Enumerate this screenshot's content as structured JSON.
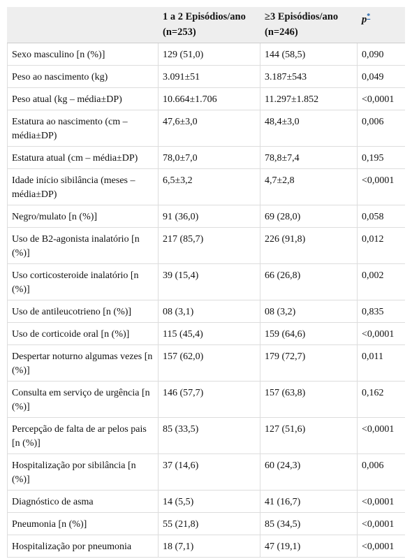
{
  "table": {
    "header": [
      [],
      [
        "1 a 2 Episódios/ano",
        "(n=253)"
      ],
      [
        "≥3 Episódios/ano",
        "(n=246)"
      ],
      {
        "text": "p",
        "note": "*"
      }
    ],
    "rows": [
      [
        "Sexo masculino [n (%)]",
        "129 (51,0)",
        "144 (58,5)",
        "0,090"
      ],
      [
        "Peso ao nascimento (kg)",
        "3.091±51",
        "3.187±543",
        "0,049"
      ],
      [
        "Peso atual (kg – média±DP)",
        "10.664±1.706",
        "11.297±1.852",
        "<0,0001"
      ],
      [
        "Estatura ao nascimento (cm – média±DP)",
        "47,6±3,0",
        "48,4±3,0",
        "0,006"
      ],
      [
        "Estatura atual (cm – média±DP)",
        "78,0±7,0",
        "78,8±7,4",
        "0,195"
      ],
      [
        "Idade início sibilância (meses – média±DP)",
        "6,5±3,2",
        "4,7±2,8",
        "<0,0001"
      ],
      [
        "Negro/mulato [n (%)]",
        "91 (36,0)",
        "69 (28,0)",
        "0,058"
      ],
      [
        "Uso de B2-agonista inalatório [n (%)]",
        "217 (85,7)",
        "226 (91,8)",
        "0,012"
      ],
      [
        "Uso corticosteroide inalatório [n (%)]",
        "39 (15,4)",
        "66 (26,8)",
        "0,002"
      ],
      [
        "Uso de antileucotrieno [n (%)]",
        "08 (3,1)",
        "08 (3,2)",
        "0,835"
      ],
      [
        "Uso de corticoide oral [n (%)]",
        "115 (45,4)",
        "159 (64,6)",
        "<0,0001"
      ],
      [
        "Despertar noturno algumas vezes [n (%)]",
        "157 (62,0)",
        "179 (72,7)",
        "0,011"
      ],
      [
        "Consulta em serviço de urgência [n (%)]",
        "146 (57,7)",
        "157 (63,8)",
        "0,162"
      ],
      [
        "Percepção de falta de ar pelos pais [n (%)]",
        "85 (33,5)",
        "127 (51,6)",
        "<0,0001"
      ],
      [
        "Hospitalização por sibilância [n (%)]",
        "37 (14,6)",
        "60 (24,3)",
        "0,006"
      ],
      [
        "Diagnóstico de asma",
        "14 (5,5)",
        "41 (16,7)",
        "<0,0001"
      ],
      [
        "Pneumonia [n (%)]",
        "55 (21,8)",
        "85 (34,5)",
        "<0,0001"
      ],
      [
        "Hospitalização por pneumonia",
        "18 (7,1)",
        "47 (19,1)",
        "<0,0001"
      ]
    ]
  }
}
